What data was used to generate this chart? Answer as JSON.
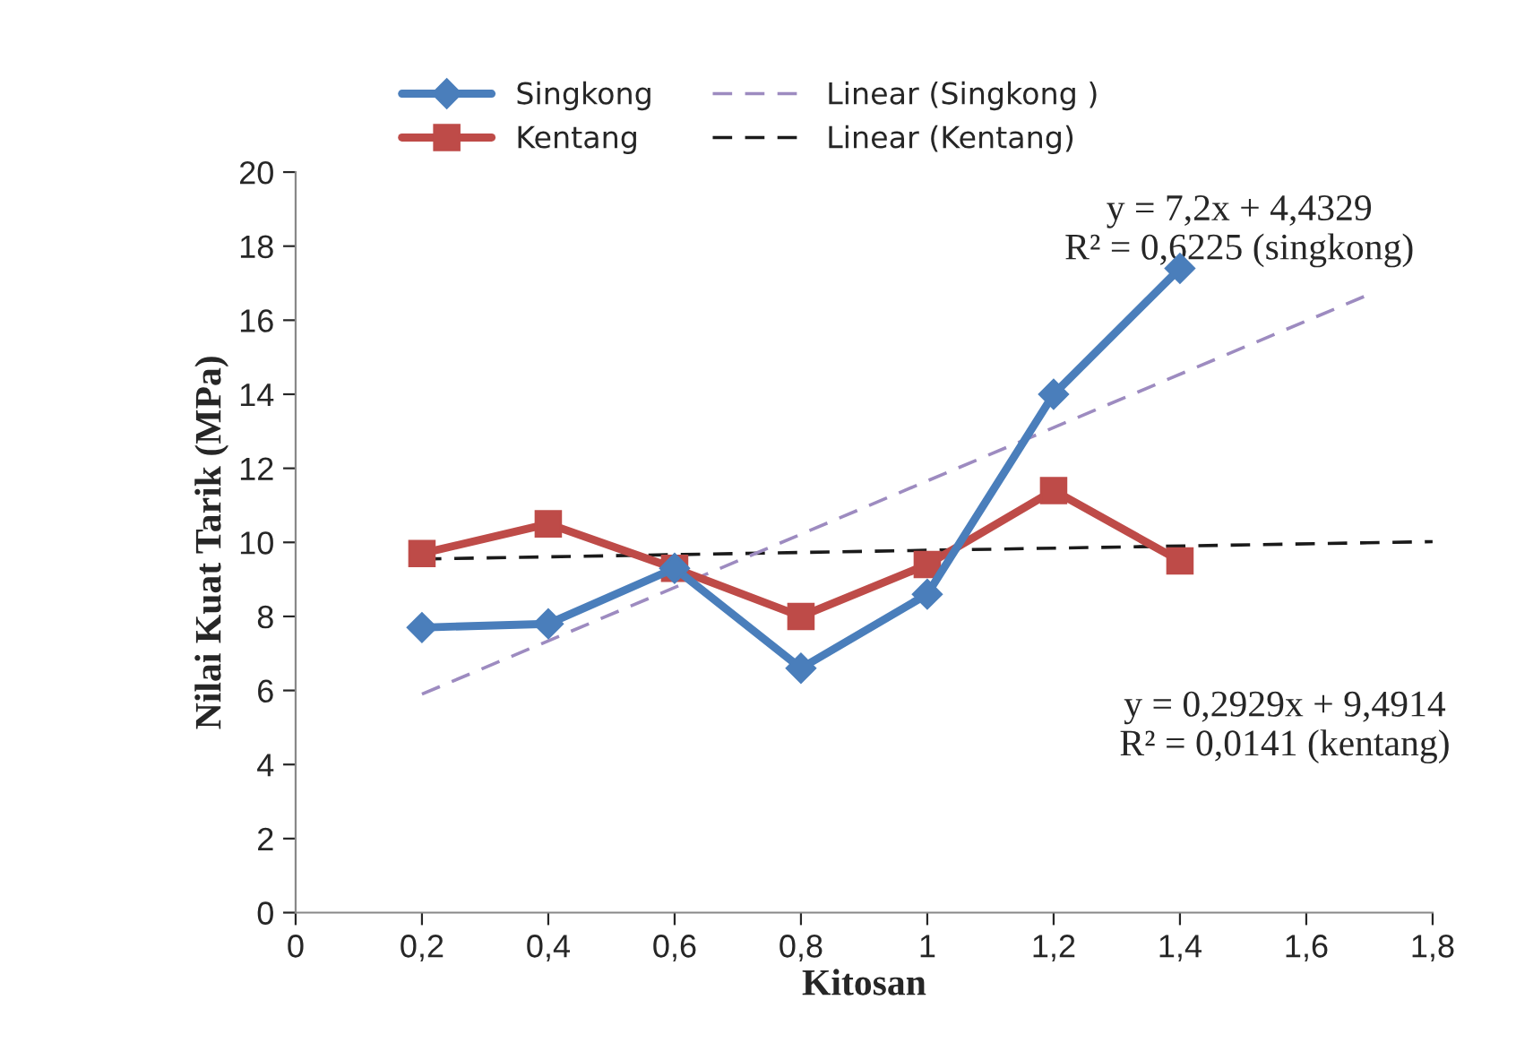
{
  "chart_data": {
    "type": "line",
    "xlabel": "Kitosan",
    "ylabel": "Nilai Kuat Tarik (MPa)",
    "xlim": [
      0,
      1.8
    ],
    "xticks": [
      0,
      {
        "value": 0.2,
        "label": "0,2"
      },
      {
        "value": 0.4,
        "label": "0,4"
      },
      {
        "value": 0.6,
        "label": "0,6"
      },
      {
        "value": 0.8,
        "label": "0,8"
      },
      1,
      {
        "value": 1.2,
        "label": "1,2"
      },
      {
        "value": 1.4,
        "label": "1,4"
      },
      {
        "value": 1.6,
        "label": "1,6"
      },
      {
        "value": 1.8,
        "label": "1,8"
      }
    ],
    "ylim": [
      0,
      20
    ],
    "yticks": [
      0,
      2,
      4,
      6,
      8,
      10,
      12,
      14,
      16,
      18,
      20
    ],
    "grid": false,
    "legend": "top",
    "series": [
      {
        "name": "Singkong",
        "color": "#4a7ebb",
        "marker": "diamond",
        "line_style": "solid",
        "x": [
          0.2,
          0.4,
          0.6,
          0.8,
          1,
          1.2,
          1.4
        ],
        "values": [
          7.7,
          7.8,
          9.3,
          6.6,
          8.6,
          14,
          17.4
        ]
      },
      {
        "name": "Kentang",
        "color": "#be4b48",
        "marker": "square",
        "line_style": "solid",
        "x": [
          0.2,
          0.4,
          0.6,
          0.8,
          1,
          1.2,
          1.4
        ],
        "values": [
          9.7,
          10.5,
          9.3,
          8.0,
          9.4,
          11.4,
          9.5
        ]
      },
      {
        "name": "Linear (Singkong )",
        "color": "#9d8bc0",
        "marker": "none",
        "line_style": "dashed",
        "x": [
          0.2,
          1.7
        ],
        "values": [
          5.9,
          16.7
        ]
      },
      {
        "name": "Linear (Kentang)",
        "color": "#1a1a1a",
        "marker": "none",
        "line_style": "dashed",
        "x": [
          0.2,
          1.8
        ],
        "values": [
          9.55,
          10.02
        ]
      }
    ],
    "annotations": [
      "y = 7,2x + 4,4329\nR² = 0,6225 (singkong)",
      "y = 0,2929x + 9,4914\nR² = 0,0141 (kentang)"
    ]
  }
}
